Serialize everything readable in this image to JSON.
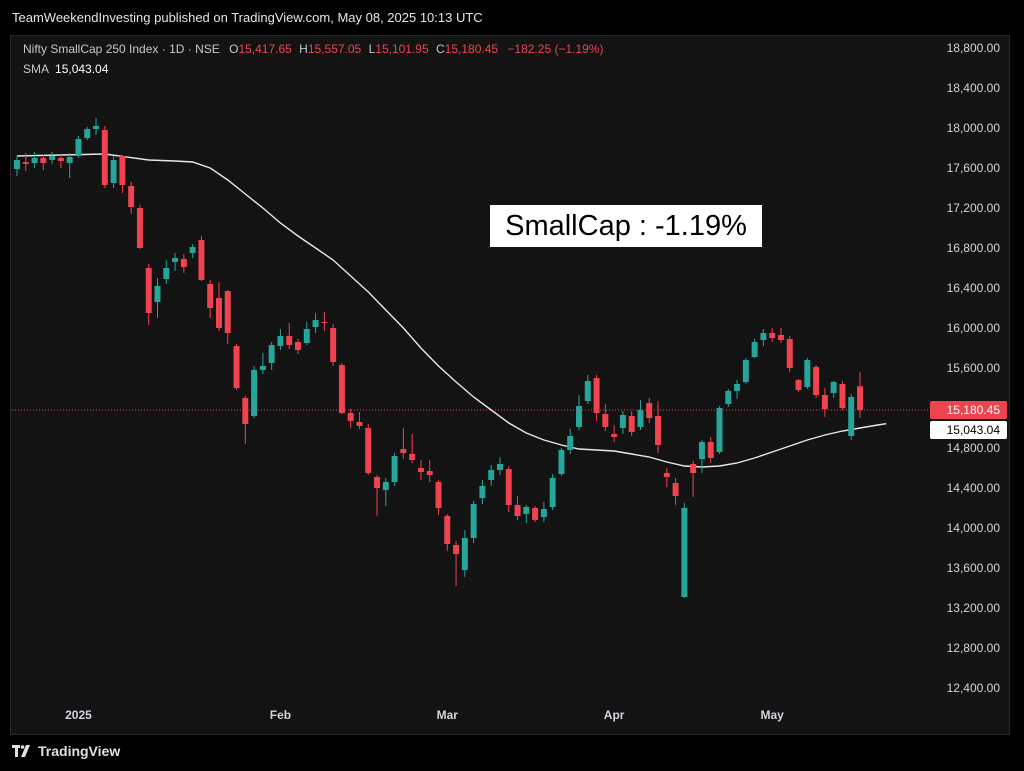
{
  "header": {
    "published": "TeamWeekendInvesting published on TradingView.com, May 08, 2025 10:13 UTC"
  },
  "legend": {
    "symbol": "Nifty SmallCap 250 Index · 1D · NSE",
    "o_label": "O",
    "o_value": "15,417.65",
    "h_label": "H",
    "h_value": "15,557.05",
    "l_label": "L",
    "l_value": "15,101.95",
    "c_label": "C",
    "c_value": "15,180.45",
    "change": "−182.25 (−1.19%)",
    "sma_label": "SMA",
    "sma_value": "15,043.04"
  },
  "annotation": "SmallCap : -1.19%",
  "footer": {
    "brand": "TradingView"
  },
  "colors": {
    "up": "#26a69a",
    "down": "#ef4350",
    "sma": "#e8e8e8",
    "price_line": "#ef4350",
    "background": "#131313"
  },
  "chart_data": {
    "type": "candlestick",
    "ylim": [
      12300,
      18950
    ],
    "y_ticks": [
      "18,800.00",
      "18,400.00",
      "18,000.00",
      "17,600.00",
      "17,200.00",
      "16,800.00",
      "16,400.00",
      "16,000.00",
      "15,600.00",
      "14,800.00",
      "14,400.00",
      "14,000.00",
      "13,600.00",
      "13,200.00",
      "12,800.00",
      "12,400.00"
    ],
    "y_tick_values": [
      18800,
      18400,
      18000,
      17600,
      17200,
      16800,
      16400,
      16000,
      15600,
      14800,
      14400,
      14000,
      13600,
      13200,
      12800,
      12400
    ],
    "x_labels": [
      {
        "label": "2025",
        "index": 7
      },
      {
        "label": "Feb",
        "index": 30
      },
      {
        "label": "Mar",
        "index": 49
      },
      {
        "label": "Apr",
        "index": 68
      },
      {
        "label": "May",
        "index": 86
      }
    ],
    "last_price": {
      "label": "15,180.45",
      "value": 15180.45
    },
    "sma_last": {
      "label": "15,043.04",
      "value": 15043.04
    },
    "candles": [
      [
        17590,
        17720,
        17520,
        17680
      ],
      [
        17660,
        17750,
        17570,
        17640
      ],
      [
        17650,
        17760,
        17600,
        17700
      ],
      [
        17700,
        17730,
        17580,
        17650
      ],
      [
        17680,
        17760,
        17640,
        17720
      ],
      [
        17700,
        17730,
        17600,
        17670
      ],
      [
        17650,
        17750,
        17500,
        17710
      ],
      [
        17720,
        17920,
        17700,
        17890
      ],
      [
        17900,
        18010,
        17880,
        17990
      ],
      [
        17990,
        18100,
        17930,
        18020
      ],
      [
        17980,
        18020,
        17400,
        17430
      ],
      [
        17450,
        17720,
        17400,
        17680
      ],
      [
        17720,
        17730,
        17350,
        17430
      ],
      [
        17420,
        17460,
        17140,
        17210
      ],
      [
        17200,
        17230,
        16790,
        16800
      ],
      [
        16600,
        16640,
        16030,
        16150
      ],
      [
        16260,
        16500,
        16100,
        16420
      ],
      [
        16490,
        16680,
        16440,
        16600
      ],
      [
        16660,
        16750,
        16570,
        16700
      ],
      [
        16690,
        16740,
        16550,
        16610
      ],
      [
        16750,
        16840,
        16700,
        16810
      ],
      [
        16880,
        16920,
        16470,
        16480
      ],
      [
        16440,
        16480,
        16100,
        16200
      ],
      [
        16300,
        16460,
        15970,
        16000
      ],
      [
        16370,
        16380,
        15840,
        15950
      ],
      [
        15820,
        15840,
        15380,
        15400
      ],
      [
        15300,
        15320,
        14840,
        15040
      ],
      [
        15120,
        15620,
        15100,
        15580
      ],
      [
        15580,
        15750,
        15540,
        15620
      ],
      [
        15650,
        15860,
        15580,
        15830
      ],
      [
        15820,
        15990,
        15780,
        15920
      ],
      [
        15920,
        16050,
        15790,
        15830
      ],
      [
        15860,
        15890,
        15740,
        15780
      ],
      [
        15850,
        16060,
        15830,
        15990
      ],
      [
        16010,
        16150,
        15950,
        16080
      ],
      [
        16060,
        16160,
        15970,
        16050
      ],
      [
        16000,
        16040,
        15620,
        15660
      ],
      [
        15630,
        15650,
        15140,
        15150
      ],
      [
        15150,
        15190,
        15000,
        15070
      ],
      [
        15060,
        15160,
        14990,
        15020
      ],
      [
        15000,
        15040,
        14530,
        14550
      ],
      [
        14510,
        14530,
        14120,
        14400
      ],
      [
        14380,
        14500,
        14220,
        14460
      ],
      [
        14460,
        14750,
        14420,
        14720
      ],
      [
        14790,
        15000,
        14690,
        14750
      ],
      [
        14740,
        14940,
        14650,
        14680
      ],
      [
        14600,
        14680,
        14480,
        14560
      ],
      [
        14570,
        14680,
        14460,
        14530
      ],
      [
        14460,
        14480,
        14130,
        14200
      ],
      [
        14120,
        14140,
        13770,
        13840
      ],
      [
        13830,
        13870,
        13420,
        13740
      ],
      [
        13580,
        13980,
        13510,
        13900
      ],
      [
        13900,
        14270,
        13850,
        14240
      ],
      [
        14300,
        14480,
        14240,
        14420
      ],
      [
        14480,
        14630,
        14420,
        14580
      ],
      [
        14580,
        14710,
        14530,
        14640
      ],
      [
        14590,
        14620,
        14160,
        14230
      ],
      [
        14230,
        14320,
        14080,
        14120
      ],
      [
        14140,
        14230,
        14050,
        14210
      ],
      [
        14200,
        14220,
        14060,
        14080
      ],
      [
        14110,
        14260,
        14060,
        14190
      ],
      [
        14210,
        14540,
        14180,
        14500
      ],
      [
        14540,
        14800,
        14520,
        14780
      ],
      [
        14780,
        14990,
        14740,
        14920
      ],
      [
        15010,
        15330,
        14980,
        15220
      ],
      [
        15270,
        15530,
        15240,
        15470
      ],
      [
        15500,
        15530,
        15070,
        15150
      ],
      [
        15140,
        15240,
        14970,
        15010
      ],
      [
        14940,
        15030,
        14860,
        14910
      ],
      [
        15000,
        15170,
        14940,
        15130
      ],
      [
        15120,
        15170,
        14920,
        14960
      ],
      [
        15010,
        15280,
        14980,
        15180
      ],
      [
        15250,
        15300,
        15050,
        15100
      ],
      [
        15120,
        15270,
        14750,
        14830
      ],
      [
        14550,
        14600,
        14410,
        14510
      ],
      [
        14450,
        14500,
        14230,
        14320
      ],
      [
        13310,
        14250,
        13300,
        14200
      ],
      [
        14640,
        14670,
        14310,
        14550
      ],
      [
        14690,
        14880,
        14550,
        14860
      ],
      [
        14860,
        14910,
        14650,
        14700
      ],
      [
        14760,
        15220,
        14740,
        15200
      ],
      [
        15240,
        15390,
        15210,
        15370
      ],
      [
        15370,
        15480,
        15290,
        15440
      ],
      [
        15460,
        15700,
        15440,
        15680
      ],
      [
        15710,
        15890,
        15700,
        15860
      ],
      [
        15880,
        15990,
        15820,
        15950
      ],
      [
        15950,
        16000,
        15860,
        15900
      ],
      [
        15930,
        16000,
        15850,
        15880
      ],
      [
        15890,
        15920,
        15560,
        15600
      ],
      [
        15480,
        15490,
        15360,
        15380
      ],
      [
        15410,
        15700,
        15390,
        15680
      ],
      [
        15610,
        15630,
        15300,
        15330
      ],
      [
        15330,
        15400,
        15110,
        15190
      ],
      [
        15350,
        15470,
        15300,
        15460
      ],
      [
        15440,
        15470,
        15180,
        15200
      ],
      [
        14920,
        15340,
        14880,
        15310
      ],
      [
        15417.65,
        15557.05,
        15101.95,
        15180.45
      ]
    ],
    "sma": [
      [
        0,
        17720
      ],
      [
        5,
        17730
      ],
      [
        10,
        17740
      ],
      [
        15,
        17680
      ],
      [
        18,
        17670
      ],
      [
        20,
        17660
      ],
      [
        22,
        17600
      ],
      [
        24,
        17480
      ],
      [
        26,
        17340
      ],
      [
        28,
        17200
      ],
      [
        30,
        17050
      ],
      [
        32,
        16920
      ],
      [
        34,
        16800
      ],
      [
        36,
        16680
      ],
      [
        38,
        16520
      ],
      [
        40,
        16360
      ],
      [
        42,
        16180
      ],
      [
        44,
        16000
      ],
      [
        46,
        15800
      ],
      [
        48,
        15620
      ],
      [
        50,
        15460
      ],
      [
        52,
        15310
      ],
      [
        54,
        15180
      ],
      [
        56,
        15050
      ],
      [
        58,
        14950
      ],
      [
        60,
        14880
      ],
      [
        62,
        14830
      ],
      [
        64,
        14790
      ],
      [
        66,
        14780
      ],
      [
        68,
        14770
      ],
      [
        70,
        14740
      ],
      [
        72,
        14710
      ],
      [
        74,
        14660
      ],
      [
        76,
        14620
      ],
      [
        78,
        14610
      ],
      [
        80,
        14620
      ],
      [
        82,
        14650
      ],
      [
        84,
        14700
      ],
      [
        86,
        14760
      ],
      [
        88,
        14820
      ],
      [
        90,
        14880
      ],
      [
        92,
        14930
      ],
      [
        94,
        14970
      ],
      [
        96,
        15000
      ],
      [
        98,
        15030
      ],
      [
        99,
        15043
      ]
    ]
  }
}
